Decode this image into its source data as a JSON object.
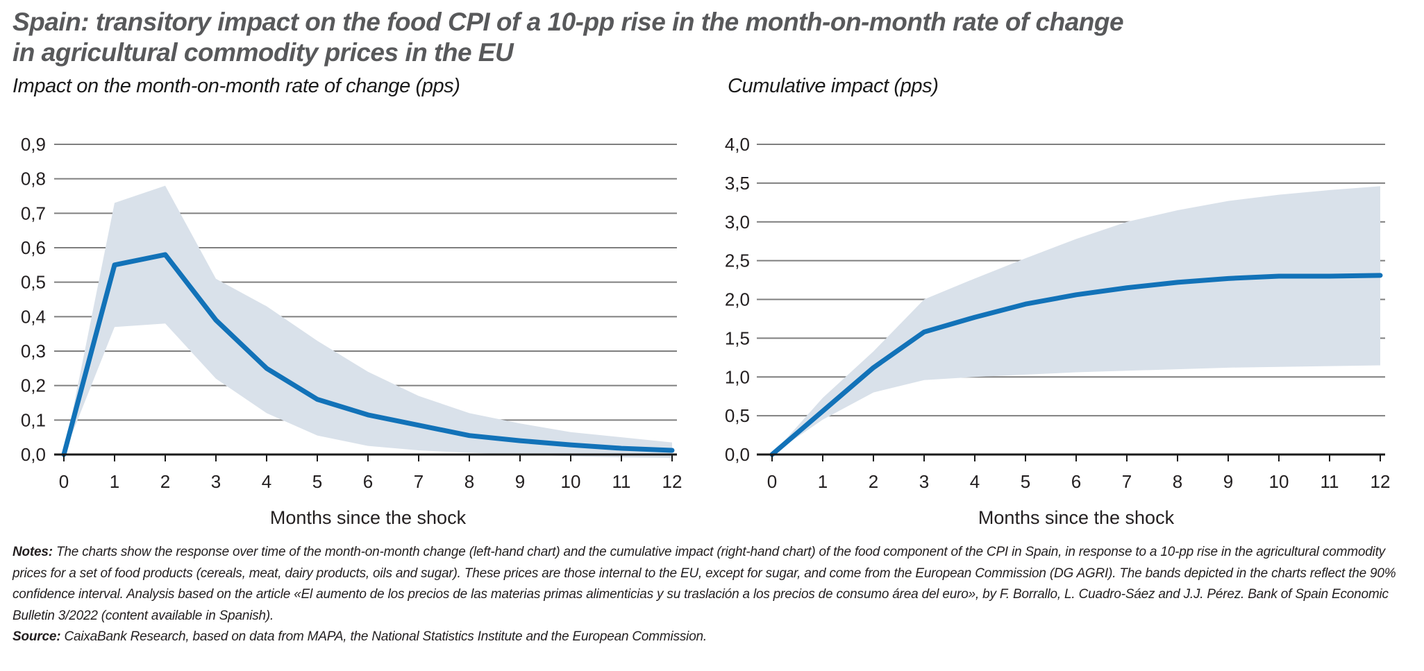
{
  "header": {
    "title_line1": "Spain: transitory impact on the food CPI of a 10-pp rise in the month-on-month rate of change",
    "title_line2": "in agricultural commodity prices in the EU"
  },
  "chart_data": [
    {
      "type": "line",
      "subtitle": "Impact on the month-on-month rate of change (pps)",
      "xlabel": "Months since the shock",
      "x": [
        0,
        1,
        2,
        3,
        4,
        5,
        6,
        7,
        8,
        9,
        10,
        11,
        12
      ],
      "x_tick_labels": [
        "0",
        "1",
        "2",
        "3",
        "4",
        "5",
        "6",
        "7",
        "8",
        "9",
        "10",
        "11",
        "12"
      ],
      "ylim": [
        0,
        0.9
      ],
      "y_tick_labels": [
        "0,0",
        "0,1",
        "0,2",
        "0,3",
        "0,4",
        "0,5",
        "0,6",
        "0,7",
        "0,8",
        "0,9"
      ],
      "grid": true,
      "legend": "none",
      "series": [
        {
          "name": "impact",
          "values": [
            0,
            0.55,
            0.58,
            0.39,
            0.25,
            0.16,
            0.115,
            0.085,
            0.055,
            0.04,
            0.028,
            0.018,
            0.012
          ]
        },
        {
          "name": "band_upper_90pct",
          "values": [
            0,
            0.73,
            0.78,
            0.51,
            0.43,
            0.33,
            0.24,
            0.17,
            0.12,
            0.09,
            0.065,
            0.05,
            0.035
          ]
        },
        {
          "name": "band_lower_90pct",
          "values": [
            0,
            0.37,
            0.38,
            0.22,
            0.12,
            0.055,
            0.025,
            0.012,
            0.005,
            0,
            -0.005,
            -0.008,
            -0.01
          ]
        }
      ]
    },
    {
      "type": "line",
      "subtitle": "Cumulative impact (pps)",
      "xlabel": "Months since the shock",
      "x": [
        0,
        1,
        2,
        3,
        4,
        5,
        6,
        7,
        8,
        9,
        10,
        11,
        12
      ],
      "x_tick_labels": [
        "0",
        "1",
        "2",
        "3",
        "4",
        "5",
        "6",
        "7",
        "8",
        "9",
        "10",
        "11",
        "12"
      ],
      "ylim": [
        0,
        4.0
      ],
      "y_tick_labels": [
        "0,0",
        "0,5",
        "1,0",
        "1,5",
        "2,0",
        "2,5",
        "3,0",
        "3,5",
        "4,0"
      ],
      "grid": true,
      "legend": "none",
      "series": [
        {
          "name": "cumulative_impact",
          "values": [
            0,
            0.56,
            1.12,
            1.58,
            1.77,
            1.94,
            2.06,
            2.15,
            2.22,
            2.27,
            2.3,
            2.3,
            2.31
          ]
        },
        {
          "name": "band_upper_90pct",
          "values": [
            0,
            0.73,
            1.33,
            2.0,
            2.27,
            2.53,
            2.78,
            3.0,
            3.15,
            3.27,
            3.35,
            3.41,
            3.46
          ]
        },
        {
          "name": "band_lower_90pct",
          "values": [
            0,
            0.45,
            0.8,
            0.96,
            1.0,
            1.03,
            1.06,
            1.08,
            1.1,
            1.12,
            1.13,
            1.14,
            1.15
          ]
        }
      ]
    }
  ],
  "notes": {
    "label": "Notes:",
    "text": "The charts show the response over time of the month-on-month change (left-hand chart) and the cumulative impact (right-hand chart) of the food component of the CPI in Spain, in response to a 10-pp rise in the agricultural commodity prices for a set of food products (cereals, meat, dairy products, oils and sugar). These prices are those internal to the EU, except for sugar, and come from the European Commission (DG AGRI). The bands depicted in the charts reflect the 90% confidence interval. Analysis based on the article «El aumento de los precios de las materias primas alimenticias y su traslación a los precios de consumo área del euro», by F. Borrallo, L. Cuadro-Sáez and J.J. Pérez. Bank of Spain Economic Bulletin 3/2022 (content available in Spanish)."
  },
  "source": {
    "label": "Source:",
    "text": "CaixaBank Research, based on data from MAPA, the National Statistics Institute and the European Commission."
  },
  "colors": {
    "line": "#1272B8",
    "band": "#D9E1EA",
    "grid": "#7F7F7F",
    "axis": "#1A1A1A",
    "text": "#231F20",
    "title": "#58595B"
  }
}
